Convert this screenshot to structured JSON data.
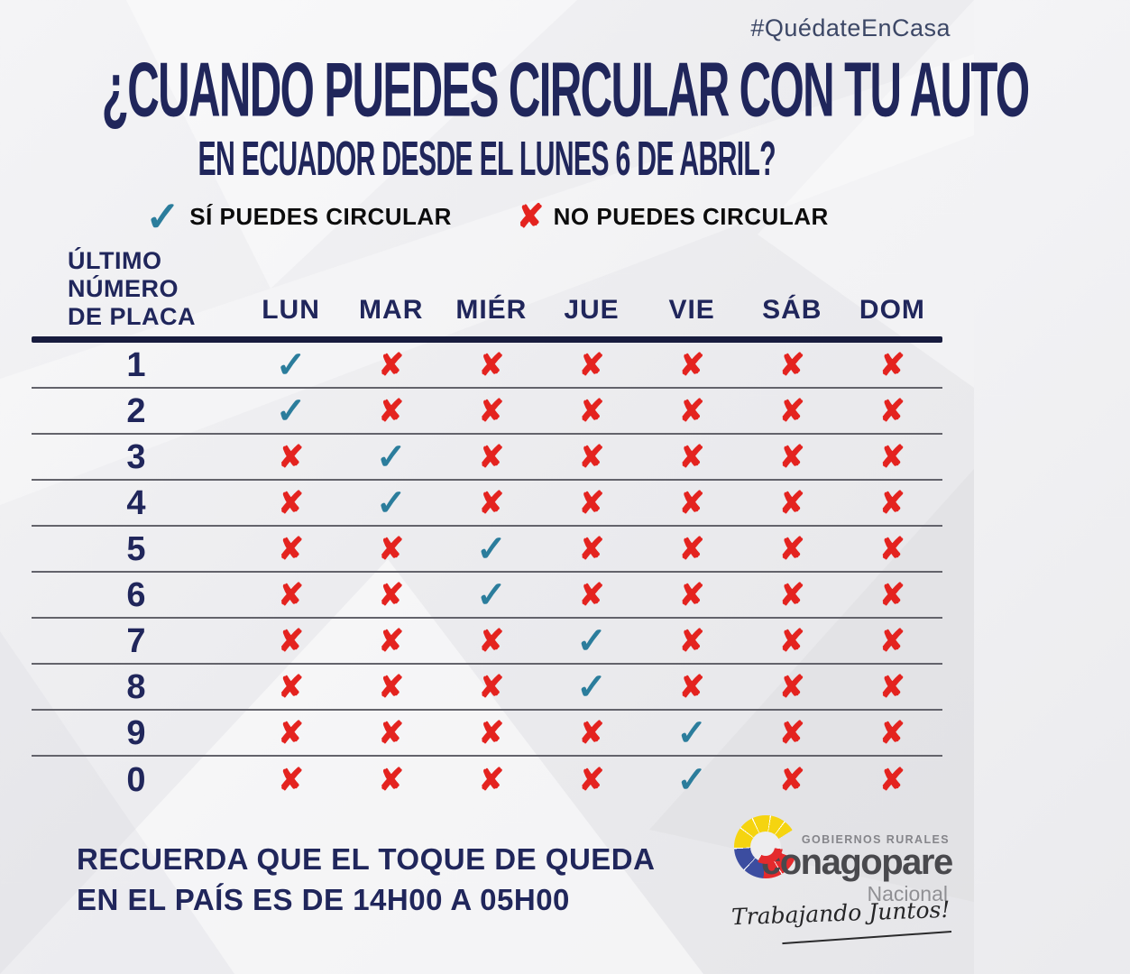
{
  "hashtag": "#QuédateEnCasa",
  "title": {
    "line1": "¿CUANDO PUEDES CIRCULAR CON TU AUTO",
    "line2": "EN ECUADOR DESDE EL LUNES 6 DE ABRIL?"
  },
  "legend": {
    "yes_label": "SÍ PUEDES CIRCULAR",
    "no_label": "NO PUEDES CIRCULAR"
  },
  "table": {
    "corner_label_lines": [
      "ÚLTIMO",
      "NÚMERO",
      "DE PLACA"
    ],
    "days": [
      "LUN",
      "MAR",
      "MIÉR",
      "JUE",
      "VIE",
      "SÁB",
      "DOM"
    ],
    "mark_glyphs": {
      "check": "✓",
      "cross": "✘"
    },
    "rows": [
      {
        "plate": "1",
        "marks": [
          "check",
          "cross",
          "cross",
          "cross",
          "cross",
          "cross",
          "cross"
        ]
      },
      {
        "plate": "2",
        "marks": [
          "check",
          "cross",
          "cross",
          "cross",
          "cross",
          "cross",
          "cross"
        ]
      },
      {
        "plate": "3",
        "marks": [
          "cross",
          "check",
          "cross",
          "cross",
          "cross",
          "cross",
          "cross"
        ]
      },
      {
        "plate": "4",
        "marks": [
          "cross",
          "check",
          "cross",
          "cross",
          "cross",
          "cross",
          "cross"
        ]
      },
      {
        "plate": "5",
        "marks": [
          "cross",
          "cross",
          "check",
          "cross",
          "cross",
          "cross",
          "cross"
        ]
      },
      {
        "plate": "6",
        "marks": [
          "cross",
          "cross",
          "check",
          "cross",
          "cross",
          "cross",
          "cross"
        ]
      },
      {
        "plate": "7",
        "marks": [
          "cross",
          "cross",
          "cross",
          "check",
          "cross",
          "cross",
          "cross"
        ]
      },
      {
        "plate": "8",
        "marks": [
          "cross",
          "cross",
          "cross",
          "check",
          "cross",
          "cross",
          "cross"
        ]
      },
      {
        "plate": "9",
        "marks": [
          "cross",
          "cross",
          "cross",
          "cross",
          "check",
          "cross",
          "cross"
        ]
      },
      {
        "plate": "0",
        "marks": [
          "cross",
          "cross",
          "cross",
          "cross",
          "check",
          "cross",
          "cross"
        ]
      }
    ]
  },
  "footer": {
    "note_line1": "RECUERDA QUE EL TOQUE DE QUEDA",
    "note_line2": "EN EL PAÍS ES DE 14H00 A 05H00"
  },
  "logo": {
    "top_label": "GOBIERNOS RURALES",
    "name": "conagopare",
    "subtitle": "Nacional",
    "tagline": "Trabajando Juntos!"
  },
  "colors": {
    "navy": "#20265b",
    "check": "#2b7d9c",
    "cross": "#e4231f",
    "logo_yellow": "#f5d410",
    "logo_blue": "#3c4da0",
    "logo_red": "#e42a2d"
  },
  "chart_data": {
    "type": "table",
    "title": "¿CUANDO PUEDES CIRCULAR CON TU AUTO EN ECUADOR DESDE EL LUNES 6 DE ABRIL?",
    "columns": [
      "ÚLTIMO NÚMERO DE PLACA",
      "LUN",
      "MAR",
      "MIÉR",
      "JUE",
      "VIE",
      "SÁB",
      "DOM"
    ],
    "rows": [
      [
        "1",
        "sí",
        "no",
        "no",
        "no",
        "no",
        "no",
        "no"
      ],
      [
        "2",
        "sí",
        "no",
        "no",
        "no",
        "no",
        "no",
        "no"
      ],
      [
        "3",
        "no",
        "sí",
        "no",
        "no",
        "no",
        "no",
        "no"
      ],
      [
        "4",
        "no",
        "sí",
        "no",
        "no",
        "no",
        "no",
        "no"
      ],
      [
        "5",
        "no",
        "no",
        "sí",
        "no",
        "no",
        "no",
        "no"
      ],
      [
        "6",
        "no",
        "no",
        "sí",
        "no",
        "no",
        "no",
        "no"
      ],
      [
        "7",
        "no",
        "no",
        "no",
        "sí",
        "no",
        "no",
        "no"
      ],
      [
        "8",
        "no",
        "no",
        "no",
        "sí",
        "no",
        "no",
        "no"
      ],
      [
        "9",
        "no",
        "no",
        "no",
        "no",
        "sí",
        "no",
        "no"
      ],
      [
        "0",
        "no",
        "no",
        "no",
        "no",
        "sí",
        "no",
        "no"
      ]
    ],
    "legend": [
      "SÍ PUEDES CIRCULAR",
      "NO PUEDES CIRCULAR"
    ],
    "annotation": "RECUERDA QUE EL TOQUE DE QUEDA EN EL PAÍS ES DE 14H00 A 05H00"
  }
}
